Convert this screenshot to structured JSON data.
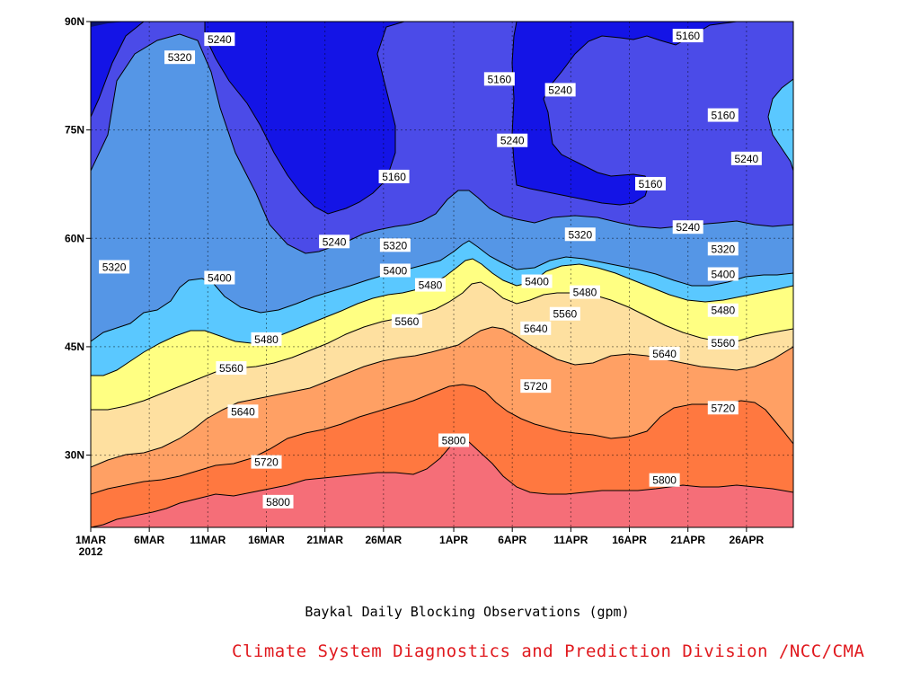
{
  "chart_data": {
    "type": "heatmap",
    "title": "Baykal Daily Blocking Observations (gpm)",
    "credit": "Climate System Diagnostics and Prediction Division /NCC/CMA",
    "x_axis": {
      "start": "1MAR 2012",
      "end": "30APR 2012",
      "ticks": [
        "1MAR",
        "6MAR",
        "11MAR",
        "16MAR",
        "21MAR",
        "26MAR",
        "1APR",
        "6APR",
        "11APR",
        "16APR",
        "21APR",
        "26APR"
      ],
      "year_label": "2012"
    },
    "y_axis": {
      "min_lat": 20,
      "max_lat": 90,
      "ticks": [
        "30N",
        "45N",
        "60N",
        "75N",
        "90N"
      ]
    },
    "contour_levels": [
      5160,
      5240,
      5320,
      5400,
      5480,
      5560,
      5640,
      5720,
      5800
    ],
    "fill_colors": [
      "#0c1470",
      "#1414e6",
      "#4b4be8",
      "#5596e6",
      "#5ac8ff",
      "#ffff82",
      "#fee0a0",
      "#ffa064",
      "#ff7840",
      "#f56e78"
    ],
    "contour_labels": [
      {
        "day": 11.0,
        "lat": 87.5,
        "value": 5240
      },
      {
        "day": 7.6,
        "lat": 85.0,
        "value": 5320
      },
      {
        "day": 25.9,
        "lat": 68.5,
        "value": 5160
      },
      {
        "day": 20.8,
        "lat": 59.5,
        "value": 5240
      },
      {
        "day": 26.0,
        "lat": 59.0,
        "value": 5320
      },
      {
        "day": 26.0,
        "lat": 55.5,
        "value": 5400
      },
      {
        "day": 2.0,
        "lat": 56.0,
        "value": 5320
      },
      {
        "day": 11.0,
        "lat": 54.5,
        "value": 5400
      },
      {
        "day": 29.0,
        "lat": 53.5,
        "value": 5480
      },
      {
        "day": 34.9,
        "lat": 82.0,
        "value": 5160
      },
      {
        "day": 36.0,
        "lat": 73.5,
        "value": 5240
      },
      {
        "day": 38.1,
        "lat": 54.0,
        "value": 5400
      },
      {
        "day": 40.1,
        "lat": 80.5,
        "value": 5240
      },
      {
        "day": 41.8,
        "lat": 60.5,
        "value": 5320
      },
      {
        "day": 42.2,
        "lat": 52.5,
        "value": 5480
      },
      {
        "day": 51.0,
        "lat": 88.0,
        "value": 5160
      },
      {
        "day": 54.0,
        "lat": 77.0,
        "value": 5160
      },
      {
        "day": 47.8,
        "lat": 67.5,
        "value": 5160
      },
      {
        "day": 51.0,
        "lat": 61.5,
        "value": 5240
      },
      {
        "day": 56.0,
        "lat": 71.0,
        "value": 5240
      },
      {
        "day": 54.0,
        "lat": 58.5,
        "value": 5320
      },
      {
        "day": 54.0,
        "lat": 55.0,
        "value": 5400
      },
      {
        "day": 54.0,
        "lat": 50.0,
        "value": 5480
      },
      {
        "day": 54.0,
        "lat": 45.5,
        "value": 5560
      },
      {
        "day": 49.0,
        "lat": 44.0,
        "value": 5640
      },
      {
        "day": 54.0,
        "lat": 36.5,
        "value": 5720
      },
      {
        "day": 49.0,
        "lat": 26.5,
        "value": 5800
      },
      {
        "day": 15.0,
        "lat": 46.0,
        "value": 5480
      },
      {
        "day": 12.0,
        "lat": 42.0,
        "value": 5560
      },
      {
        "day": 13.0,
        "lat": 36.0,
        "value": 5640
      },
      {
        "day": 15.0,
        "lat": 29.0,
        "value": 5720
      },
      {
        "day": 16.0,
        "lat": 23.5,
        "value": 5800
      },
      {
        "day": 27.0,
        "lat": 48.5,
        "value": 5560
      },
      {
        "day": 38.0,
        "lat": 47.5,
        "value": 5640
      },
      {
        "day": 38.0,
        "lat": 39.5,
        "value": 5720
      },
      {
        "day": 31.0,
        "lat": 32.0,
        "value": 5800
      },
      {
        "day": 40.5,
        "lat": 49.5,
        "value": 5560
      }
    ]
  }
}
